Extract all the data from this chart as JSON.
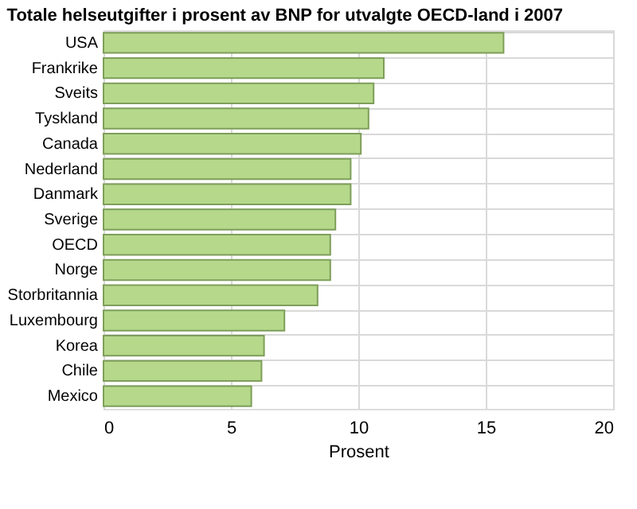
{
  "chart_data": {
    "type": "bar",
    "orientation": "horizontal",
    "title": "Totale helseutgifter i prosent av BNP for utvalgte OECD-land i 2007",
    "xlabel": "Prosent",
    "categories": [
      "USA",
      "Frankrike",
      "Sveits",
      "Tyskland",
      "Canada",
      "Nederland",
      "Danmark",
      "Sverige",
      "OECD",
      "Norge",
      "Storbritannia",
      "Luxembourg",
      "Korea",
      "Chile",
      "Mexico"
    ],
    "values": [
      15.7,
      11.0,
      10.6,
      10.4,
      10.1,
      9.7,
      9.7,
      9.1,
      8.9,
      8.9,
      8.4,
      7.1,
      6.3,
      6.2,
      5.8
    ],
    "color": "#b5d88b",
    "xlim": [
      0,
      20
    ],
    "xticks": [
      0,
      5,
      10,
      15,
      20
    ],
    "grid": true
  }
}
